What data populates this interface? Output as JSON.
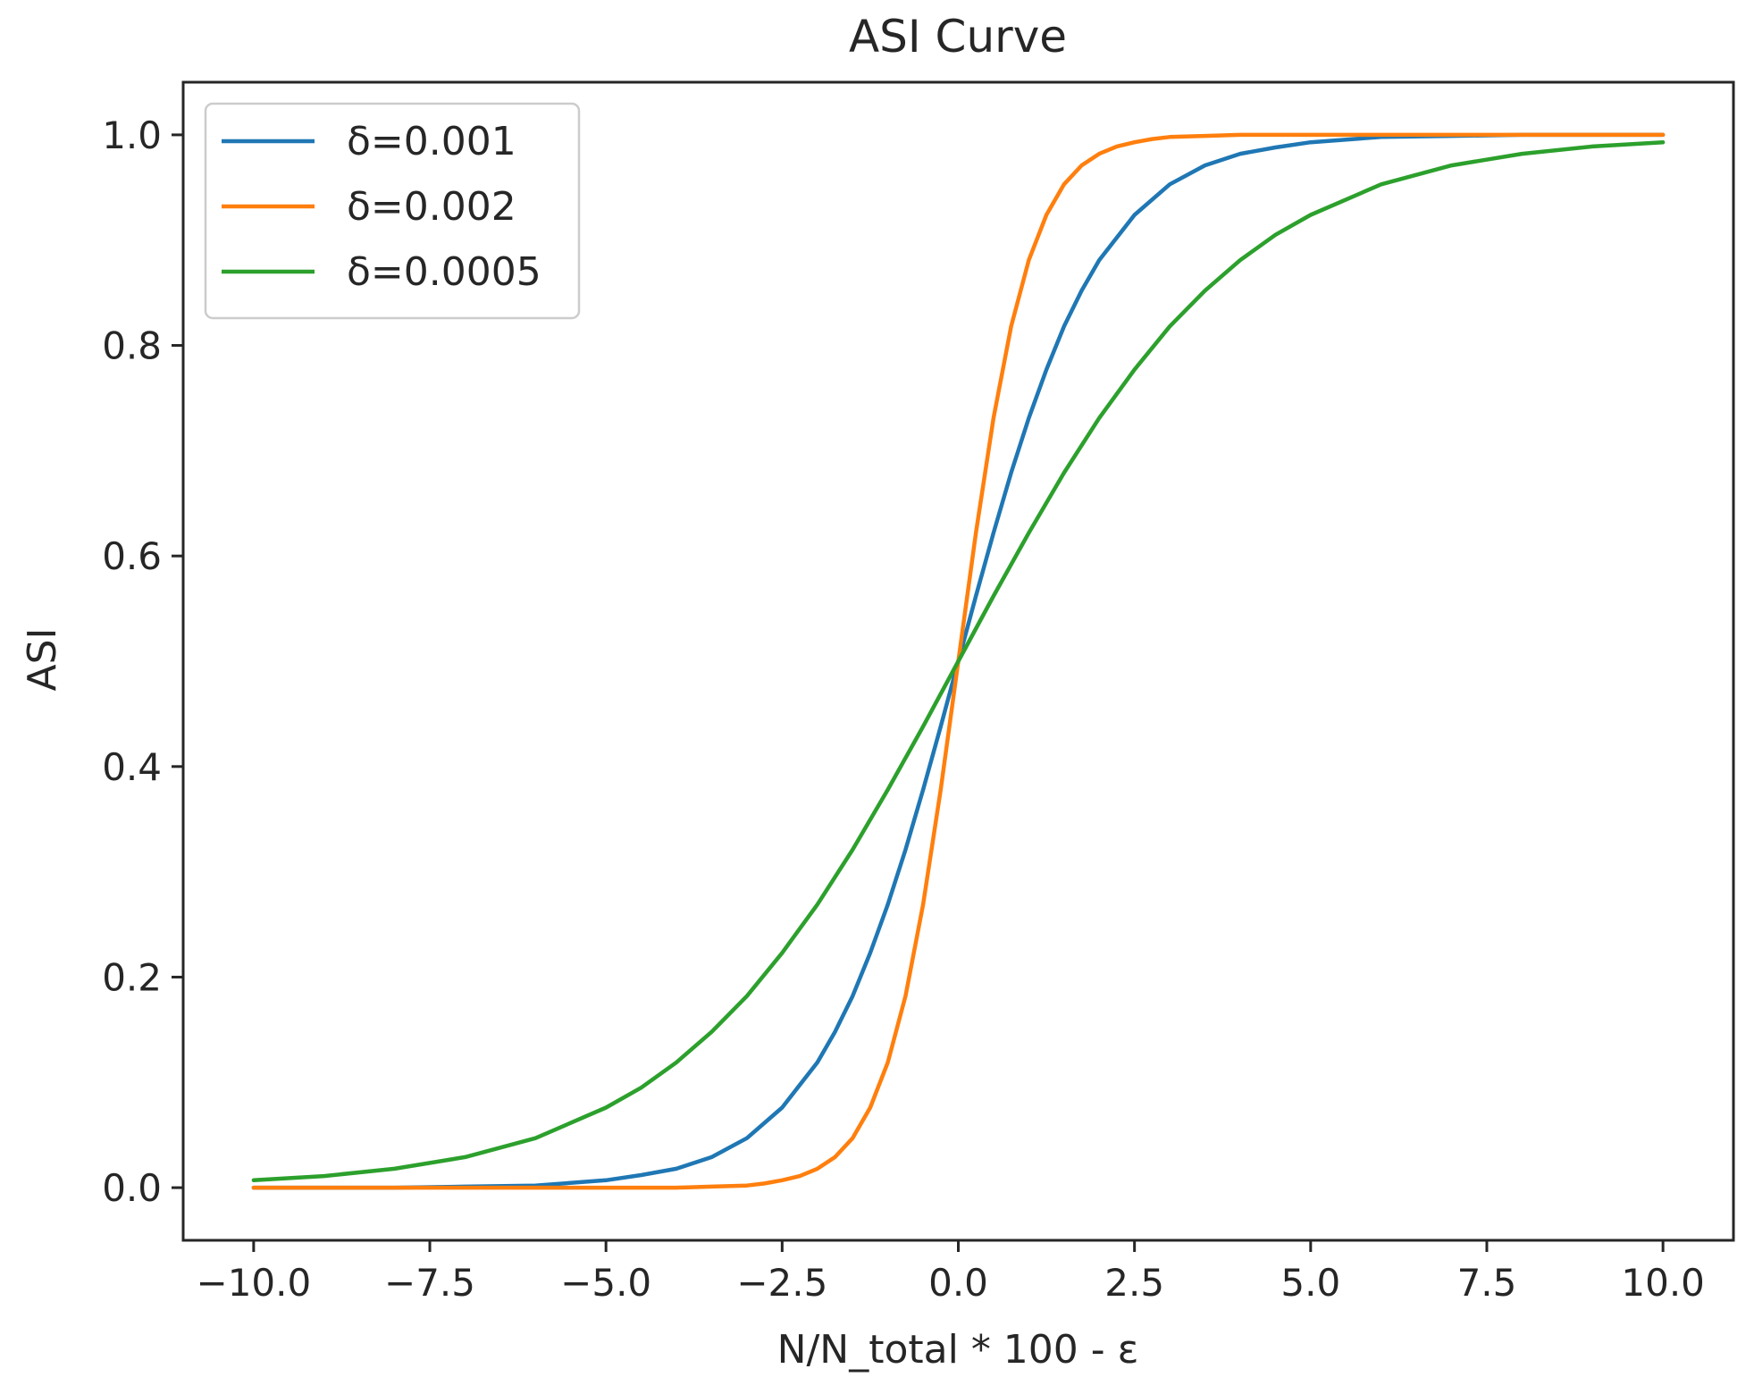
{
  "chart_data": {
    "type": "line",
    "title": "ASI Curve",
    "xlabel": "N/N_total * 100 - ε",
    "ylabel": "ASI",
    "xlim": [
      -11.0,
      11.0
    ],
    "ylim": [
      -0.05,
      1.05
    ],
    "xticks": [
      -10.0,
      -7.5,
      -5.0,
      -2.5,
      0.0,
      2.5,
      5.0,
      7.5,
      10.0
    ],
    "xtick_labels": [
      "−10.0",
      "−7.5",
      "−5.0",
      "−2.5",
      "0.0",
      "2.5",
      "5.0",
      "7.5",
      "10.0"
    ],
    "yticks": [
      0.0,
      0.2,
      0.4,
      0.6,
      0.8,
      1.0
    ],
    "ytick_labels": [
      "0.0",
      "0.2",
      "0.4",
      "0.6",
      "0.8",
      "1.0"
    ],
    "grid": false,
    "legend_position": "upper-left",
    "series": [
      {
        "name": "δ=0.001",
        "color": "#1f77b4",
        "x": [
          -10,
          -9,
          -8,
          -7,
          -6,
          -5,
          -4.5,
          -4,
          -3.5,
          -3,
          -2.5,
          -2,
          -1.75,
          -1.5,
          -1.25,
          -1,
          -0.75,
          -0.5,
          -0.25,
          0,
          0.25,
          0.5,
          0.75,
          1,
          1.25,
          1.5,
          1.75,
          2,
          2.5,
          3,
          3.5,
          4,
          4.5,
          5,
          6,
          7,
          8,
          9,
          10
        ],
        "y": [
          0.0,
          0.0,
          0.0,
          0.001,
          0.002,
          0.007,
          0.012,
          0.018,
          0.029,
          0.047,
          0.076,
          0.119,
          0.148,
          0.182,
          0.223,
          0.269,
          0.321,
          0.378,
          0.438,
          0.5,
          0.562,
          0.622,
          0.679,
          0.731,
          0.777,
          0.818,
          0.852,
          0.881,
          0.924,
          0.953,
          0.971,
          0.982,
          0.988,
          0.993,
          0.998,
          0.999,
          1.0,
          1.0,
          1.0
        ]
      },
      {
        "name": "δ=0.002",
        "color": "#ff7f0e",
        "x": [
          -10,
          -9,
          -8,
          -7,
          -6,
          -5,
          -4.5,
          -4,
          -3.5,
          -3,
          -2.75,
          -2.5,
          -2.25,
          -2,
          -1.75,
          -1.5,
          -1.25,
          -1,
          -0.75,
          -0.5,
          -0.25,
          0,
          0.25,
          0.5,
          0.75,
          1,
          1.25,
          1.5,
          1.75,
          2,
          2.25,
          2.5,
          2.75,
          3,
          3.5,
          4,
          4.5,
          5,
          6,
          7,
          8,
          9,
          10
        ],
        "y": [
          0.0,
          0.0,
          0.0,
          0.0,
          0.0,
          0.0,
          0.0,
          0.0,
          0.001,
          0.002,
          0.004,
          0.007,
          0.011,
          0.018,
          0.029,
          0.047,
          0.076,
          0.119,
          0.182,
          0.269,
          0.378,
          0.5,
          0.622,
          0.731,
          0.818,
          0.881,
          0.924,
          0.953,
          0.971,
          0.982,
          0.989,
          0.993,
          0.996,
          0.998,
          0.999,
          1.0,
          1.0,
          1.0,
          1.0,
          1.0,
          1.0,
          1.0,
          1.0
        ]
      },
      {
        "name": "δ=0.0005",
        "color": "#2ca02c",
        "x": [
          -10,
          -9,
          -8,
          -7,
          -6,
          -5,
          -4.5,
          -4,
          -3.5,
          -3,
          -2.5,
          -2,
          -1.5,
          -1,
          -0.5,
          0,
          0.5,
          1,
          1.5,
          2,
          2.5,
          3,
          3.5,
          4,
          4.5,
          5,
          6,
          7,
          8,
          9,
          10
        ],
        "y": [
          0.007,
          0.011,
          0.018,
          0.029,
          0.047,
          0.076,
          0.095,
          0.119,
          0.148,
          0.182,
          0.223,
          0.269,
          0.321,
          0.378,
          0.438,
          0.5,
          0.562,
          0.622,
          0.679,
          0.731,
          0.777,
          0.818,
          0.852,
          0.881,
          0.905,
          0.924,
          0.953,
          0.971,
          0.982,
          0.989,
          0.993
        ]
      }
    ]
  }
}
